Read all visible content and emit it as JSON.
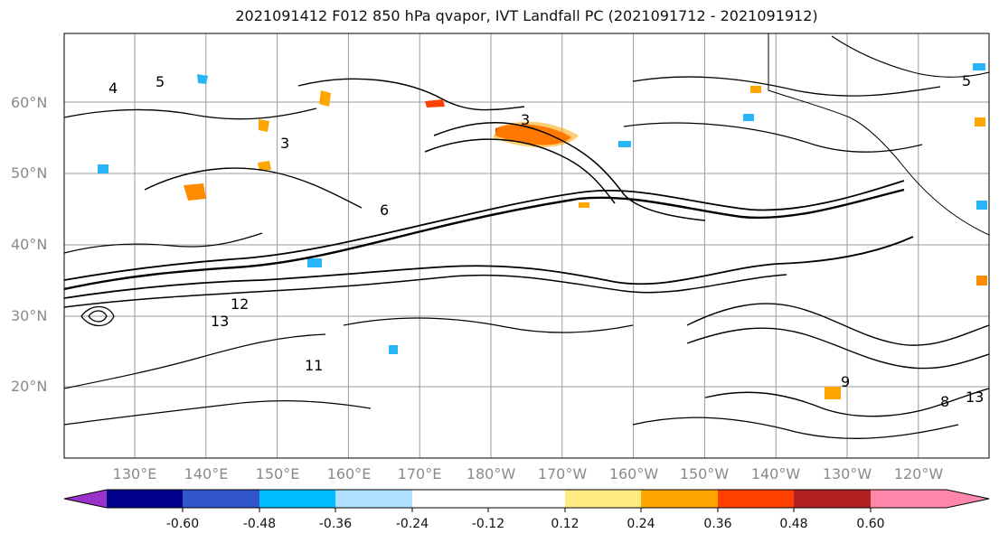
{
  "title": "2021091412 F012 850 hPa qvapor, IVT Landfall PC (2021091712 - 2021091912)",
  "map": {
    "lat_labels": [
      "60°N",
      "50°N",
      "40°N",
      "30°N",
      "20°N"
    ],
    "lon_labels": [
      "130°E",
      "140°E",
      "150°E",
      "160°E",
      "170°E",
      "180°W",
      "170°W",
      "160°W",
      "150°W",
      "140°W",
      "130°W",
      "120°W"
    ],
    "contour_labels": [
      "3",
      "4",
      "5",
      "6",
      "8",
      "9",
      "11",
      "12",
      "13"
    ]
  },
  "colorbar": {
    "colors": [
      "#9933cc",
      "#00008b",
      "#3355cc",
      "#00bfff",
      "#b0e0ff",
      "#ffffff",
      "#ffffff",
      "#ffeb80",
      "#ffa500",
      "#ff4000",
      "#b22222",
      "#ff88aa"
    ],
    "tick_labels": [
      "-0.60",
      "-0.48",
      "-0.36",
      "-0.24",
      "-0.12",
      "0.12",
      "0.24",
      "0.36",
      "0.48",
      "0.60"
    ]
  }
}
